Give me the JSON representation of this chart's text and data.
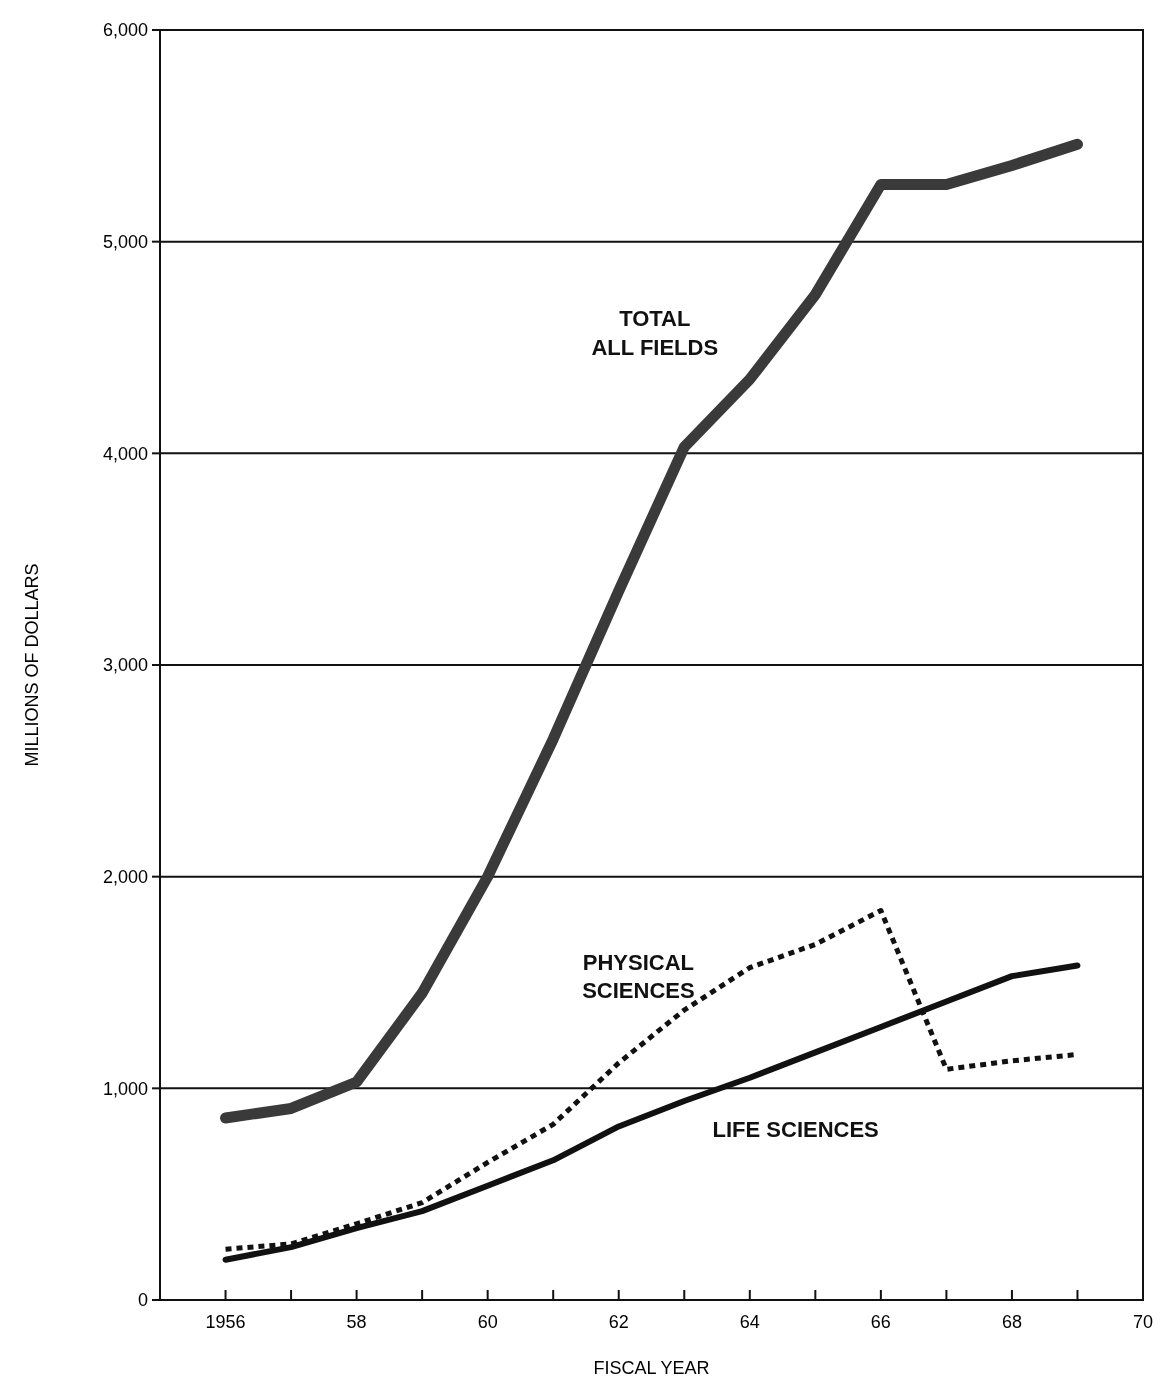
{
  "chart_data": {
    "type": "line",
    "xlabel": "FISCAL YEAR",
    "ylabel": "MILLIONS OF DOLLARS",
    "x": [
      1956,
      1957,
      1958,
      1959,
      1960,
      1961,
      1962,
      1963,
      1964,
      1965,
      1966,
      1967,
      1968,
      1969
    ],
    "series": [
      {
        "name": "TOTAL\nALL FIELDS",
        "color": "#3a3a3a",
        "line_style": "solid",
        "values": [
          860,
          905,
          1030,
          1450,
          2000,
          2650,
          3350,
          4030,
          4350,
          4750,
          5270,
          5270,
          5360,
          5460
        ]
      },
      {
        "name": "PHYSICAL\nSCIENCES",
        "color": "#111111",
        "line_style": "dotted",
        "values": [
          240,
          265,
          360,
          460,
          650,
          830,
          1120,
          1370,
          1570,
          1680,
          1840,
          1090,
          1130,
          1160
        ]
      },
      {
        "name": "LIFE SCIENCES",
        "color": "#111111",
        "line_style": "solid",
        "values": [
          190,
          250,
          340,
          420,
          540,
          660,
          820,
          940,
          1050,
          1170,
          1290,
          1410,
          1530,
          1580
        ]
      }
    ],
    "xlim": [
      1955,
      1970
    ],
    "xticks": [
      {
        "value": 1955,
        "label": null
      },
      {
        "value": 1956,
        "label": "1956"
      },
      {
        "value": 1957,
        "label": null
      },
      {
        "value": 1958,
        "label": "58"
      },
      {
        "value": 1959,
        "label": null
      },
      {
        "value": 1960,
        "label": "60"
      },
      {
        "value": 1961,
        "label": null
      },
      {
        "value": 1962,
        "label": "62"
      },
      {
        "value": 1963,
        "label": null
      },
      {
        "value": 1964,
        "label": "64"
      },
      {
        "value": 1965,
        "label": null
      },
      {
        "value": 1966,
        "label": "66"
      },
      {
        "value": 1967,
        "label": null
      },
      {
        "value": 1968,
        "label": "68"
      },
      {
        "value": 1969,
        "label": null
      },
      {
        "value": 1970,
        "label": "70"
      }
    ],
    "ylim": [
      0,
      6000
    ],
    "yticks": [
      {
        "value": 0,
        "label": "0"
      },
      {
        "value": 1000,
        "label": "1,000"
      },
      {
        "value": 2000,
        "label": "2,000"
      },
      {
        "value": 3000,
        "label": "3,000"
      },
      {
        "value": 4000,
        "label": "4,000"
      },
      {
        "value": 5000,
        "label": "5,000"
      },
      {
        "value": 6000,
        "label": "6,000"
      }
    ],
    "grid": "y",
    "marker": "none"
  }
}
